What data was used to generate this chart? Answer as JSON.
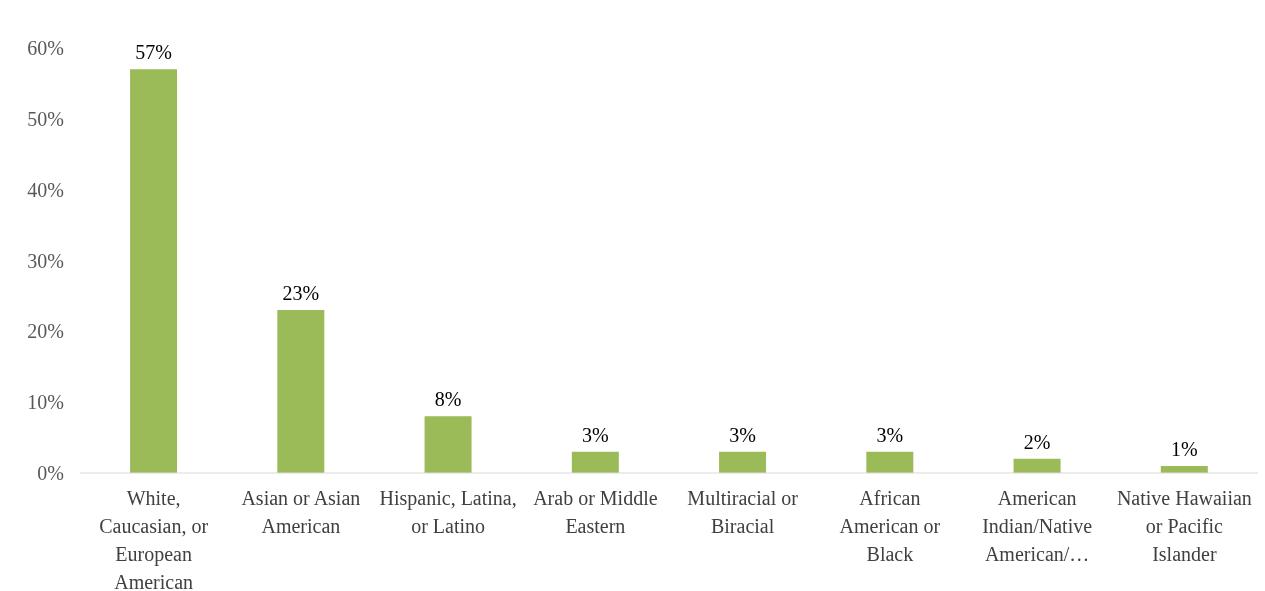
{
  "chart_data": {
    "type": "bar",
    "categories": [
      "White, Caucasian, or European American",
      "Asian or Asian American",
      "Hispanic, Latina, or Latino",
      "Arab or Middle Eastern",
      "Multiracial or Biracial",
      "African American or Black",
      "American Indian/Native American/…",
      "Native Hawaiian or Pacific Islander"
    ],
    "values": [
      57,
      23,
      8,
      3,
      3,
      3,
      2,
      1
    ],
    "value_labels": [
      "57%",
      "23%",
      "8%",
      "3%",
      "3%",
      "3%",
      "2%",
      "1%"
    ],
    "color": "#9bbb59",
    "ylim": [
      0,
      60
    ],
    "yticks": [
      {
        "value": 0,
        "label": "0%"
      },
      {
        "value": 10,
        "label": "10%"
      },
      {
        "value": 20,
        "label": "20%"
      },
      {
        "value": 30,
        "label": "30%"
      },
      {
        "value": 40,
        "label": "40%"
      },
      {
        "value": 50,
        "label": "50%"
      },
      {
        "value": 60,
        "label": "60%"
      }
    ],
    "grid": false,
    "legend": false
  }
}
